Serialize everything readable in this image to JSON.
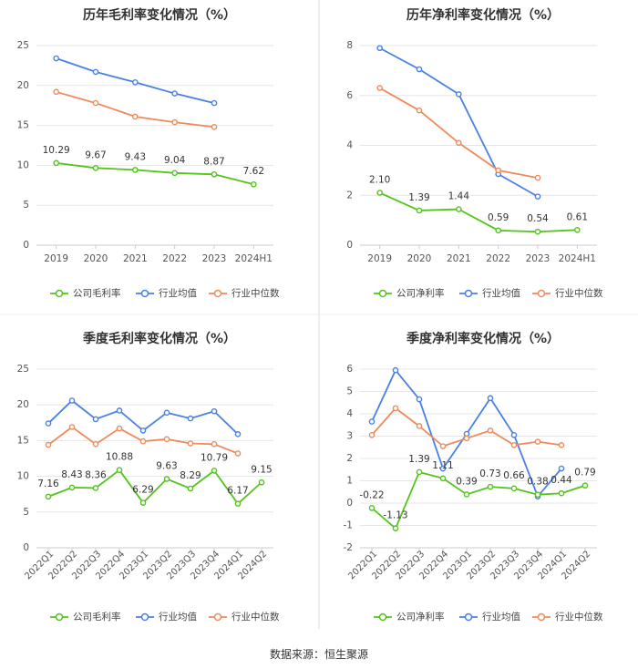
{
  "source_note": "数据来源：恒生聚源",
  "colors": {
    "company": "#52c41a",
    "industry_avg": "#4a7fe5",
    "industry_median": "#f08a5d",
    "grid": "#e6e6e6",
    "axis_text": "#555555",
    "title": "#333333",
    "divider": "#dddddd"
  },
  "chart_data": [
    {
      "type": "line",
      "title": "历年毛利率变化情况（%）",
      "categories": [
        "2019",
        "2020",
        "2021",
        "2022",
        "2023",
        "2024H1"
      ],
      "ylim": [
        0,
        25
      ],
      "yticks": [
        0,
        5,
        10,
        15,
        20,
        25
      ],
      "rotate_x_labels": false,
      "series": [
        {
          "key": "company",
          "name": "公司毛利率",
          "values": [
            10.29,
            9.67,
            9.43,
            9.04,
            8.87,
            7.62
          ],
          "labels": [
            "10.29",
            "9.67",
            "9.43",
            "9.04",
            "8.87",
            "7.62"
          ]
        },
        {
          "key": "industry_avg",
          "name": "行业均值",
          "values": [
            23.4,
            21.7,
            20.4,
            19.0,
            17.8,
            null
          ]
        },
        {
          "key": "industry_median",
          "name": "行业中位数",
          "values": [
            19.2,
            17.8,
            16.1,
            15.4,
            14.8,
            null
          ]
        }
      ]
    },
    {
      "type": "line",
      "title": "历年净利率变化情况（%）",
      "categories": [
        "2019",
        "2020",
        "2021",
        "2022",
        "2023",
        "2024H1"
      ],
      "ylim": [
        0,
        8
      ],
      "yticks": [
        0,
        2,
        4,
        6,
        8
      ],
      "rotate_x_labels": false,
      "series": [
        {
          "key": "company",
          "name": "公司净利率",
          "values": [
            2.1,
            1.39,
            1.44,
            0.59,
            0.54,
            0.61
          ],
          "labels": [
            "2.10",
            "1.39",
            "1.44",
            "0.59",
            "0.54",
            "0.61"
          ]
        },
        {
          "key": "industry_avg",
          "name": "行业均值",
          "values": [
            7.9,
            7.05,
            6.05,
            2.85,
            1.95,
            null
          ]
        },
        {
          "key": "industry_median",
          "name": "行业中位数",
          "values": [
            6.3,
            5.4,
            4.1,
            3.0,
            2.7,
            null
          ]
        }
      ]
    },
    {
      "type": "line",
      "title": "季度毛利率变化情况（%）",
      "categories": [
        "2022Q1",
        "2022Q2",
        "2022Q3",
        "2022Q4",
        "2023Q1",
        "2023Q2",
        "2023Q3",
        "2023Q4",
        "2024Q1",
        "2024Q2"
      ],
      "ylim": [
        0,
        25
      ],
      "yticks": [
        0,
        5,
        10,
        15,
        20,
        25
      ],
      "rotate_x_labels": true,
      "series": [
        {
          "key": "company",
          "name": "公司毛利率",
          "values": [
            7.16,
            8.43,
            8.36,
            10.88,
            6.29,
            9.63,
            8.29,
            10.79,
            6.17,
            9.15
          ],
          "labels": [
            "7.16",
            "8.43",
            "8.36",
            "10.88",
            "6.29",
            "9.63",
            "8.29",
            "10.79",
            "6.17",
            "9.15"
          ]
        },
        {
          "key": "industry_avg",
          "name": "行业均值",
          "values": [
            17.4,
            20.6,
            18.0,
            19.2,
            16.4,
            18.9,
            18.1,
            19.1,
            15.9,
            null
          ]
        },
        {
          "key": "industry_median",
          "name": "行业中位数",
          "values": [
            14.4,
            16.9,
            14.5,
            16.7,
            14.9,
            15.2,
            14.6,
            14.5,
            13.2,
            null
          ]
        }
      ]
    },
    {
      "type": "line",
      "title": "季度净利率变化情况（%）",
      "categories": [
        "2022Q1",
        "2022Q2",
        "2022Q3",
        "2022Q4",
        "2023Q1",
        "2023Q2",
        "2023Q3",
        "2023Q4",
        "2024Q1",
        "2024Q2"
      ],
      "ylim": [
        -2,
        6
      ],
      "yticks": [
        -2,
        -1,
        0,
        1,
        2,
        3,
        4,
        5,
        6
      ],
      "rotate_x_labels": true,
      "series": [
        {
          "key": "company",
          "name": "公司净利率",
          "values": [
            -0.22,
            -1.13,
            1.39,
            1.11,
            0.39,
            0.73,
            0.66,
            0.38,
            0.44,
            0.79
          ],
          "labels": [
            "-0.22",
            "-1.13",
            "1.39",
            "1.11",
            "0.39",
            "0.73",
            "0.66",
            "0.38",
            "0.44",
            "0.79"
          ]
        },
        {
          "key": "industry_avg",
          "name": "行业均值",
          "values": [
            3.65,
            5.95,
            4.65,
            1.55,
            3.1,
            4.7,
            3.05,
            0.3,
            1.55,
            null
          ]
        },
        {
          "key": "industry_median",
          "name": "行业中位数",
          "values": [
            3.05,
            4.25,
            3.45,
            2.55,
            2.9,
            3.25,
            2.6,
            2.75,
            2.6,
            null
          ]
        }
      ]
    }
  ]
}
